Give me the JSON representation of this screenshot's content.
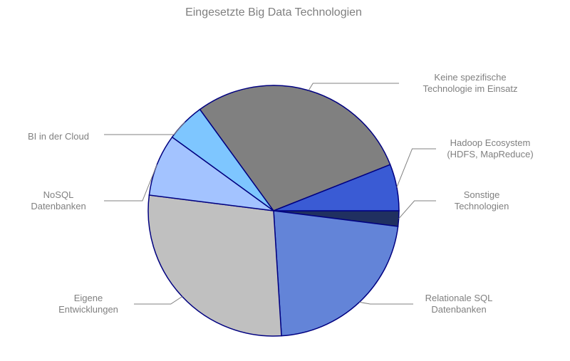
{
  "chart_data": {
    "type": "pie",
    "title": "Eingesetzte Big Data Technologien",
    "slices": [
      {
        "label": [
          "Sonstige",
          "Technologien"
        ],
        "value": 2,
        "color": "#203060"
      },
      {
        "label": [
          "Relationale SQL",
          "Datenbanken"
        ],
        "value": 22,
        "color": "#6384d8"
      },
      {
        "label": [
          "Eigene",
          "Entwicklungen"
        ],
        "value": 28,
        "color": "#c0c0c0"
      },
      {
        "label": [
          "NoSQL",
          "Datenbanken"
        ],
        "value": 8,
        "color": "#a3c3ff"
      },
      {
        "label": [
          "BI in der Cloud"
        ],
        "value": 5,
        "color": "#7ec6ff"
      },
      {
        "label": [
          "Keine spezifische",
          "Technologie im Einsatz"
        ],
        "value": 29,
        "color": "#808080"
      },
      {
        "label": [
          "Hadoop Ecosystem",
          "(HDFS, MapReduce)"
        ],
        "value": 6,
        "color": "#3a5bd4"
      }
    ]
  }
}
